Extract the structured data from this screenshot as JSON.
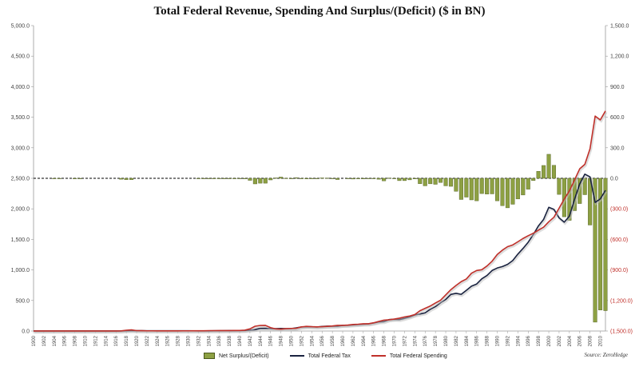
{
  "title": "Total Federal Revenue, Spending And Surplus/(Deficit) ($ in BN)",
  "source": "Source: ZeroHedge",
  "colors": {
    "bar_fill": "#8da043",
    "bar_stroke": "#4c5a1e",
    "tax": "#1a2340",
    "spending": "#c0302a"
  },
  "left_axis": {
    "min": 0,
    "max": 5000,
    "ticks": [
      "0.0",
      "500.0",
      "1,000.0",
      "1,500.0",
      "2,000.0",
      "2,500.0",
      "3,000.0",
      "3,500.0",
      "4,000.0",
      "4,500.0",
      "5,000.0"
    ]
  },
  "right_axis": {
    "min": -1500,
    "max": 1500,
    "ticks": [
      "(1,500.0)",
      "(1,200.0)",
      "(900.0)",
      "(600.0)",
      "(300.0)",
      "0.0",
      "300.0",
      "600.0",
      "900.0",
      "1,200.0",
      "1,500.0"
    ]
  },
  "x_ticks": [
    "1900",
    "1902",
    "1904",
    "1906",
    "1908",
    "1910",
    "1912",
    "1914",
    "1916",
    "1918",
    "1920",
    "1922",
    "1924",
    "1926",
    "1928",
    "1930",
    "1932",
    "1934",
    "1936",
    "1938",
    "1940",
    "1942",
    "1944",
    "1946",
    "1948",
    "1950",
    "1952",
    "1954",
    "1956",
    "1958",
    "1960",
    "1962",
    "1964",
    "1966",
    "1968",
    "1970",
    "1972",
    "1974",
    "1976",
    "1978",
    "1980",
    "1982",
    "1984",
    "1986",
    "1988",
    "1990",
    "1992",
    "1994",
    "1996",
    "1998",
    "2000",
    "2002",
    "2004",
    "2006",
    "2008",
    "2010"
  ],
  "legend": {
    "bar": "Net Surplus/(Deficit)",
    "tax": "Total Federal Tax",
    "spending": "Total Federal Spending"
  },
  "chart_data": {
    "type": "bar+line",
    "title": "Total Federal Revenue, Spending And Surplus/(Deficit) ($ in BN)",
    "xlabel": "",
    "ylabel": "",
    "ylim_left": [
      0,
      5000
    ],
    "ylim_right": [
      -1500,
      1500
    ],
    "grid": false,
    "legend_position": "bottom",
    "x": [
      1900,
      1901,
      1902,
      1903,
      1904,
      1905,
      1906,
      1907,
      1908,
      1909,
      1910,
      1911,
      1912,
      1913,
      1914,
      1915,
      1916,
      1917,
      1918,
      1919,
      1920,
      1921,
      1922,
      1923,
      1924,
      1925,
      1926,
      1927,
      1928,
      1929,
      1930,
      1931,
      1932,
      1933,
      1934,
      1935,
      1936,
      1937,
      1938,
      1939,
      1940,
      1941,
      1942,
      1943,
      1944,
      1945,
      1946,
      1947,
      1948,
      1949,
      1950,
      1951,
      1952,
      1953,
      1954,
      1955,
      1956,
      1957,
      1958,
      1959,
      1960,
      1961,
      1962,
      1963,
      1964,
      1965,
      1966,
      1967,
      1968,
      1969,
      1970,
      1971,
      1972,
      1973,
      1974,
      1975,
      1976,
      1977,
      1978,
      1979,
      1980,
      1981,
      1982,
      1983,
      1984,
      1985,
      1986,
      1987,
      1988,
      1989,
      1990,
      1991,
      1992,
      1993,
      1994,
      1995,
      1996,
      1997,
      1998,
      1999,
      2000,
      2001,
      2002,
      2003,
      2004,
      2005,
      2006,
      2007,
      2008,
      2009,
      2010,
      2011
    ],
    "series": [
      {
        "name": "Net Surplus/(Deficit)",
        "axis": "right",
        "type": "bar",
        "values": [
          0,
          0,
          0,
          0,
          -2,
          -2,
          0,
          0,
          -5,
          -5,
          0,
          0,
          0,
          0,
          0,
          0,
          0,
          -9,
          -13,
          -13,
          0,
          0,
          0,
          0,
          0,
          0,
          0,
          0,
          0,
          0,
          0,
          0,
          -3,
          -3,
          -4,
          -3,
          -4,
          -3,
          -1,
          -3,
          -3,
          -5,
          -20,
          -55,
          -48,
          -48,
          -16,
          4,
          12,
          1,
          -3,
          6,
          -1,
          -6,
          -1,
          -3,
          4,
          3,
          -3,
          -12,
          0,
          -3,
          -7,
          -5,
          -6,
          -1,
          -4,
          -9,
          -25,
          3,
          -3,
          -23,
          -23,
          -15,
          -6,
          -53,
          -74,
          -54,
          -59,
          -41,
          -74,
          -79,
          -128,
          -208,
          -185,
          -212,
          -221,
          -150,
          -155,
          -153,
          -221,
          -269,
          -290,
          -255,
          -203,
          -164,
          -107,
          -22,
          69,
          126,
          236,
          128,
          -158,
          -378,
          -413,
          -318,
          -248,
          -161,
          -459,
          -1413,
          -1294,
          -1300
        ]
      },
      {
        "name": "Total Federal Tax",
        "axis": "left",
        "type": "line",
        "values": [
          0.6,
          0.6,
          0.6,
          0.6,
          0.5,
          0.5,
          0.6,
          0.7,
          0.6,
          0.6,
          0.7,
          0.7,
          0.7,
          0.7,
          0.7,
          0.7,
          0.8,
          1.1,
          3.6,
          5.1,
          6.6,
          5.6,
          4.0,
          3.9,
          3.9,
          3.6,
          3.8,
          4.0,
          3.9,
          3.9,
          4.1,
          3.1,
          1.9,
          2.0,
          3.0,
          3.6,
          3.9,
          5.4,
          6.8,
          6.3,
          6.5,
          8.7,
          14.6,
          24,
          43.7,
          45.2,
          39.3,
          38.5,
          41.6,
          39.4,
          39.4,
          51.6,
          66.2,
          69.6,
          69.7,
          65.5,
          74.6,
          80,
          79.6,
          79.2,
          92.5,
          94.4,
          99.7,
          106.6,
          112.6,
          116.8,
          130.8,
          148.8,
          153,
          186.9,
          192.8,
          187.1,
          207.3,
          230.8,
          263.2,
          279.1,
          298.1,
          355.6,
          399.6,
          463.3,
          517.1,
          599.3,
          617.8,
          600.6,
          666.4,
          734.1,
          769.2,
          854.4,
          909.3,
          991.2,
          1032,
          1055,
          1091,
          1154,
          1259,
          1352,
          1453,
          1579,
          1722,
          1828,
          2025,
          1991,
          1853,
          1782,
          1880,
          2154,
          2407,
          2568,
          2524,
          2105,
          2163,
          2303
        ]
      },
      {
        "name": "Total Federal Spending",
        "axis": "left",
        "type": "line",
        "values": [
          0.5,
          0.5,
          0.5,
          0.5,
          0.6,
          0.6,
          0.6,
          0.6,
          0.7,
          0.7,
          0.7,
          0.7,
          0.7,
          0.7,
          0.7,
          0.7,
          0.7,
          2.0,
          12.7,
          18.5,
          6.4,
          5.1,
          3.3,
          3.1,
          2.9,
          2.9,
          2.9,
          2.9,
          3.0,
          3.1,
          3.3,
          3.6,
          4.7,
          4.6,
          6.5,
          6.4,
          8.2,
          7.6,
          6.8,
          9.1,
          9.5,
          13.7,
          35.1,
          78.6,
          91.3,
          92.7,
          55.2,
          34.5,
          29.8,
          38.8,
          42.6,
          45.5,
          67.7,
          76.1,
          70.9,
          68.4,
          70.6,
          76.6,
          82.4,
          92.1,
          92.2,
          97.7,
          106.8,
          111.3,
          118.5,
          118.2,
          134.5,
          157.5,
          178.1,
          183.6,
          195.6,
          210.2,
          230.7,
          245.7,
          269.4,
          332.3,
          371.8,
          409.2,
          458.7,
          504,
          590.9,
          678.2,
          745.7,
          808.4,
          851.8,
          946.3,
          990.4,
          1004,
          1064,
          1143,
          1253,
          1324,
          1381,
          1409,
          1461,
          1515,
          1560,
          1601,
          1652,
          1701,
          1789,
          1863,
          2011,
          2160,
          2293,
          2472,
          2655,
          2729,
          2983,
          3518,
          3456,
          3603
        ]
      }
    ]
  }
}
